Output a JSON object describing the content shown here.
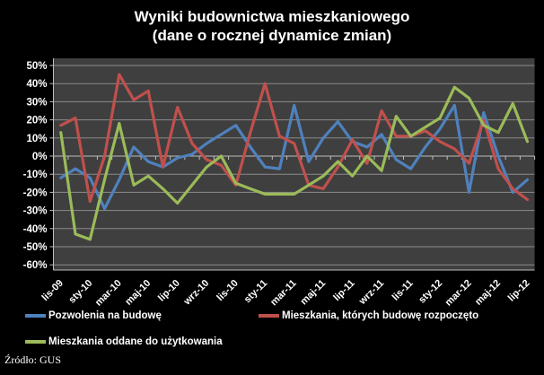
{
  "title": {
    "line1": "Wyniki budownictwa mieszkaniowego",
    "line2": "(dane o rocznej dynamice zmian)"
  },
  "source": "Źródło: GUS",
  "colors": {
    "background": "#000000",
    "plot_background": "#3F3F3F",
    "gridline": "#8C8C8C",
    "axis": "#BEBEBE",
    "text": "#FFFFFF"
  },
  "chart_data": {
    "type": "line",
    "title": "Wyniki budownictwa mieszkaniowego (dane o rocznej dynamice zmian)",
    "xlabel": "",
    "ylabel": "",
    "ylim": [
      -60,
      50
    ],
    "y_tick_step": 10,
    "y_tick_labels": [
      "50%",
      "40%",
      "30%",
      "20%",
      "10%",
      "0%",
      "-10%",
      "-20%",
      "-30%",
      "-40%",
      "-50%",
      "-60%"
    ],
    "x_label_every": 2,
    "grid": true,
    "legend_position": "bottom",
    "categories": [
      "lis-09",
      "gru-09",
      "sty-10",
      "lut-10",
      "mar-10",
      "kwi-10",
      "maj-10",
      "cze-10",
      "lip-10",
      "sie-10",
      "wrz-10",
      "paź-10",
      "lis-10",
      "gru-10",
      "sty-11",
      "lut-11",
      "mar-11",
      "kwi-11",
      "maj-11",
      "cze-11",
      "lip-11",
      "sie-11",
      "wrz-11",
      "paź-11",
      "lis-11",
      "gru-11",
      "sty-12",
      "lut-12",
      "mar-12",
      "kwi-12",
      "maj-12",
      "cze-12",
      "lip-12"
    ],
    "series": [
      {
        "name": "Pozwolenia na budowę",
        "color": "#4F81BD",
        "values": [
          -12,
          -7,
          -12,
          -29,
          -13,
          5,
          -3,
          -6,
          -1,
          1,
          7,
          12,
          17,
          5,
          -6,
          -7,
          28,
          -3,
          10,
          19,
          8,
          5,
          12,
          -2,
          -7,
          5,
          15,
          28,
          -20,
          24,
          0,
          -20,
          -13
        ]
      },
      {
        "name": "Mieszkania, których budowę rozpoczęto",
        "color": "#C0504D",
        "values": [
          17,
          21,
          -25,
          0,
          45,
          31,
          36,
          -6,
          27,
          7,
          -2,
          -5,
          -16,
          13,
          40,
          11,
          7,
          -16,
          -18,
          -6,
          9,
          -4,
          25,
          11,
          11,
          14,
          8,
          4,
          -4,
          20,
          -7,
          -18,
          -24
        ]
      },
      {
        "name": "Mieszkania oddane do użytkowania",
        "color": "#9BBB59",
        "values": [
          13,
          -43,
          -46,
          -13,
          18,
          -16,
          -11,
          -18,
          -26,
          -16,
          -6,
          0,
          -15,
          -18,
          -21,
          -21,
          -21,
          -16,
          -11,
          -3,
          -11,
          0,
          -8,
          22,
          11,
          16,
          21,
          38,
          32,
          17,
          13,
          29,
          8
        ]
      }
    ]
  }
}
